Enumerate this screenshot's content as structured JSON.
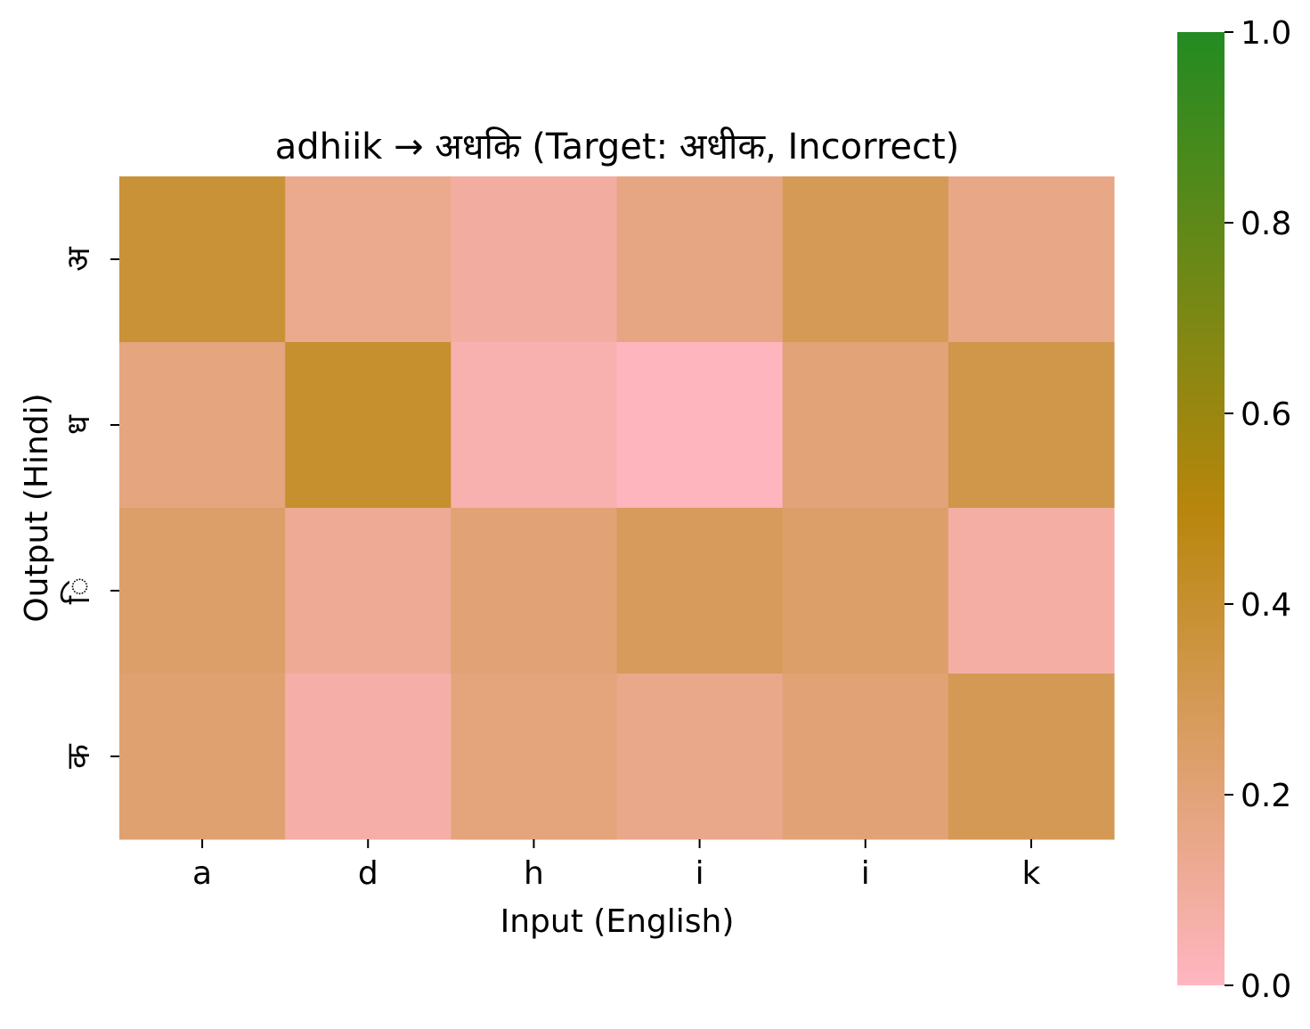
{
  "chart_data": {
    "type": "heatmap",
    "title": "adhiik → अधकि (Target: अधीक, Incorrect)",
    "xlabel": "Input (English)",
    "ylabel": "Output (Hindi)",
    "x_categories": [
      "a",
      "d",
      "h",
      "i",
      "i",
      "k"
    ],
    "y_categories": [
      "अ",
      "ध",
      "ि",
      "क"
    ],
    "values": [
      [
        0.38,
        0.14,
        0.09,
        0.17,
        0.29,
        0.16
      ],
      [
        0.18,
        0.4,
        0.05,
        0.01,
        0.2,
        0.33
      ],
      [
        0.24,
        0.12,
        0.21,
        0.28,
        0.24,
        0.08
      ],
      [
        0.22,
        0.07,
        0.19,
        0.15,
        0.21,
        0.3
      ]
    ],
    "colorbar": {
      "range": [
        0,
        1
      ],
      "ticks": [
        "0.0",
        "0.2",
        "0.4",
        "0.6",
        "0.8",
        "1.0"
      ],
      "colors": [
        "#ffb6c1",
        "#b8860b",
        "#228b22"
      ]
    },
    "grid": false,
    "legend": "none"
  }
}
